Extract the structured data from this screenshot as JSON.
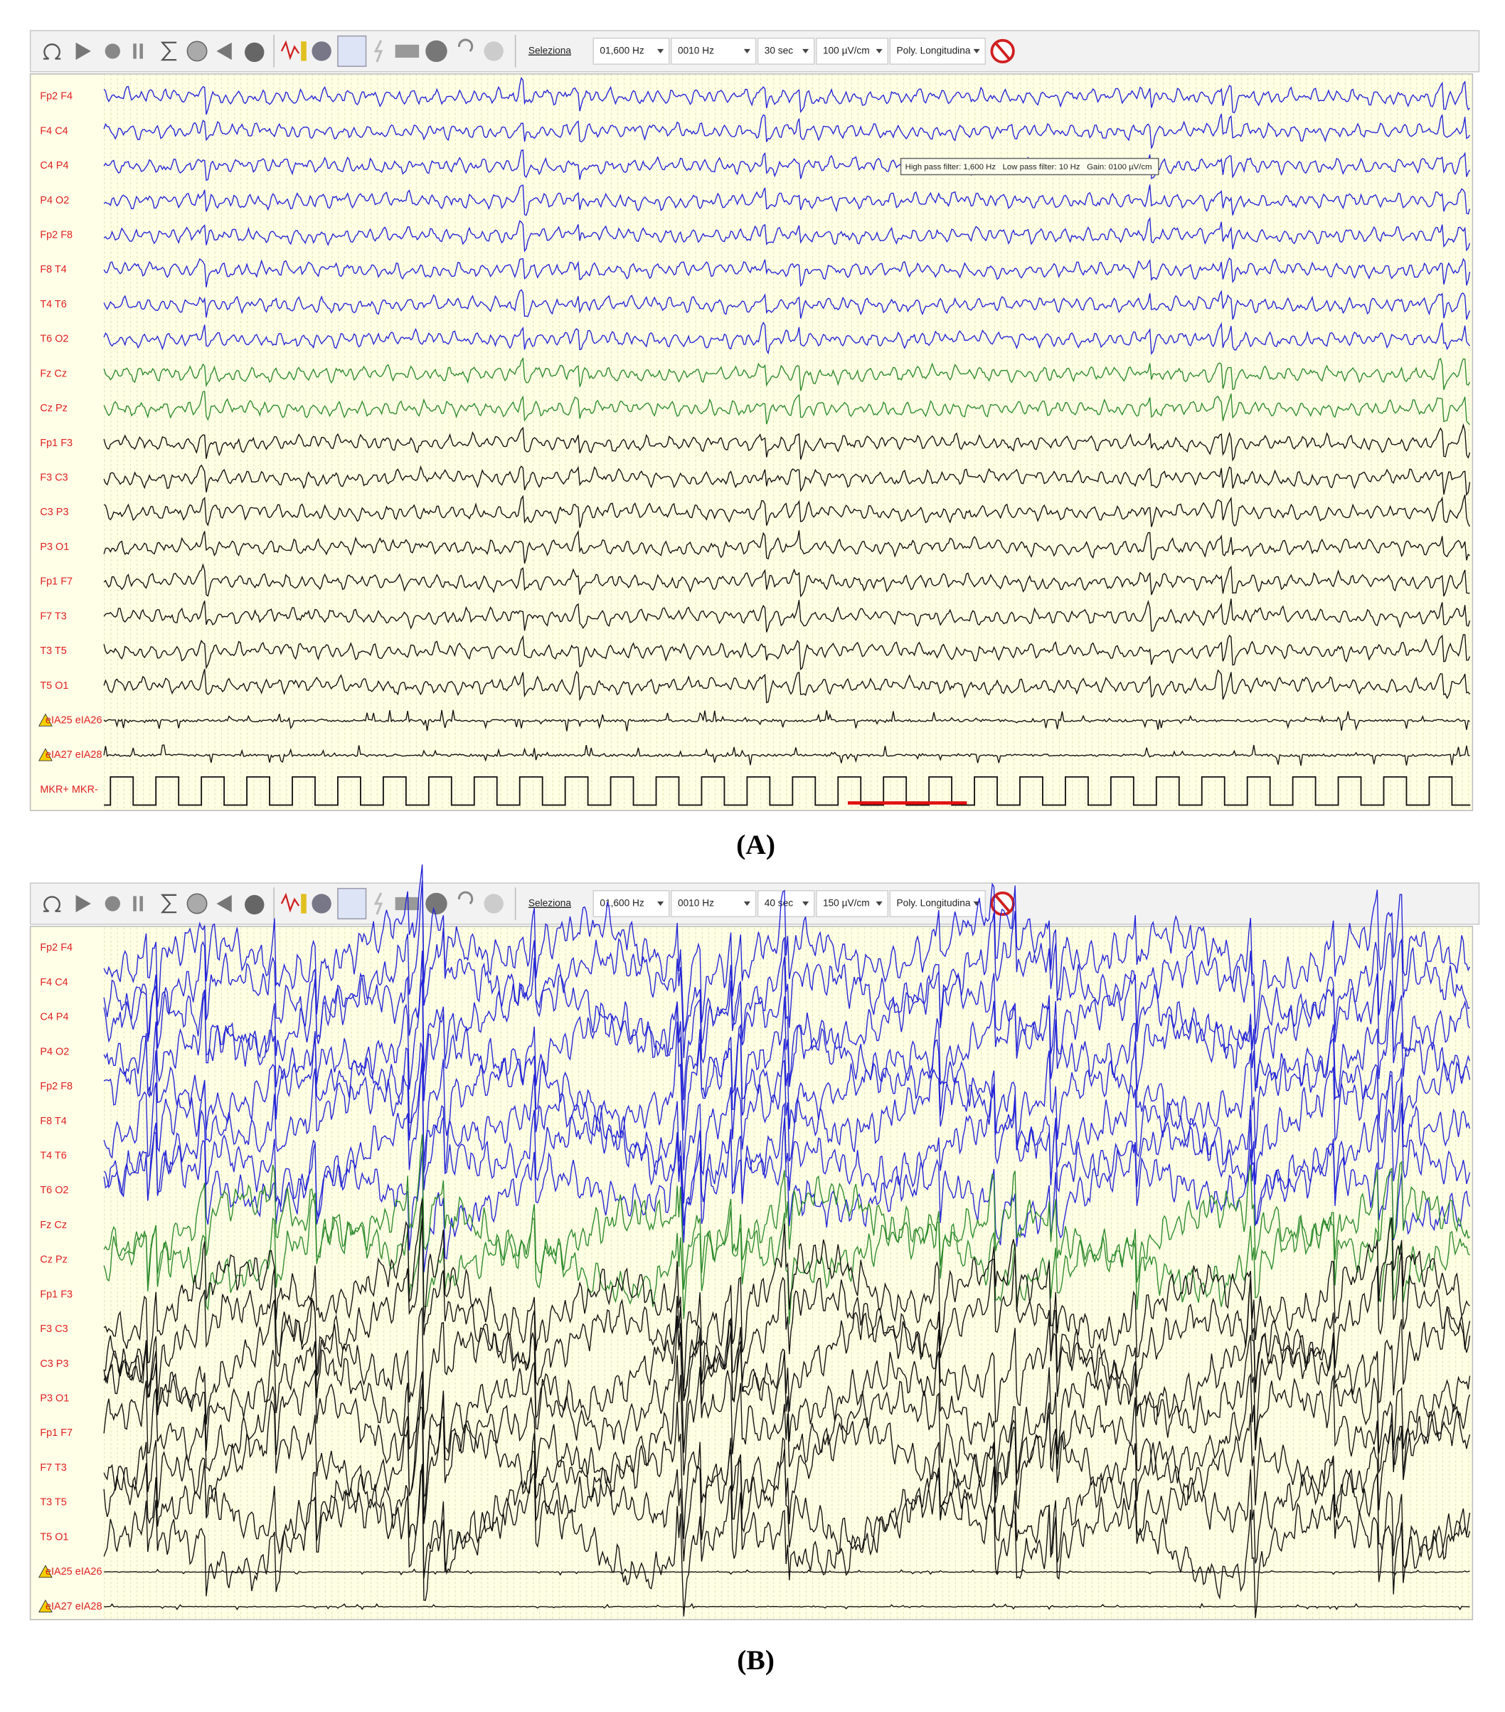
{
  "panels": [
    {
      "toolbar": {
        "select": "Seleziona",
        "high_pass": "01,600 Hz",
        "low_pass": "0010 Hz",
        "time_base": "30 sec",
        "gain": "100 µV/cm",
        "montage": "Poly. Longitudina"
      },
      "tooltip": "High pass filter: 1,600 Hz   Low pass filter: 10 Hz   Gain: 0100 µV/cm",
      "channels": [
        "Fp2 F4",
        "F4 C4",
        "C4 P4",
        "P4 O2",
        "Fp2 F8",
        "F8 T4",
        "T4 T6",
        "T6 O2",
        "Fz Cz",
        "Cz Pz",
        "Fp1 F3",
        "F3 C3",
        "C3 P3",
        "P3 O1",
        "Fp1 F7",
        "F7 T3",
        "T3 T5",
        "T5 O1",
        "eIA25 eIA26",
        "eIA27 eIA28",
        "MKR+ MKR-"
      ],
      "caption": "(A)"
    },
    {
      "toolbar": {
        "select": "Seleziona",
        "high_pass": "01,600 Hz",
        "low_pass": "0010 Hz",
        "time_base": "40 sec",
        "gain": "150 µV/cm",
        "montage": "Poly. Longitudina"
      },
      "channels": [
        "Fp2 F4",
        "F4 C4",
        "C4 P4",
        "P4 O2",
        "Fp2 F8",
        "F8 T4",
        "T4 T6",
        "T6 O2",
        "Fz Cz",
        "Cz Pz",
        "Fp1 F3",
        "F3 C3",
        "C3 P3",
        "P3 O1",
        "Fp1 F7",
        "F7 T3",
        "T3 T5",
        "T5 O1",
        "eIA25 eIA26",
        "eIA27 eIA28"
      ],
      "caption": "(B)"
    }
  ]
}
